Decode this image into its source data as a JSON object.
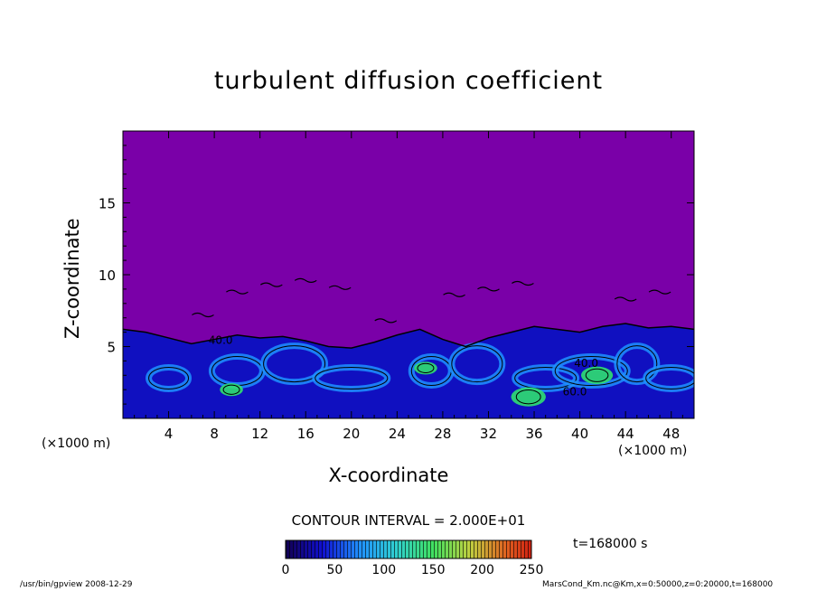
{
  "chart_data": {
    "type": "heatmap",
    "title": "turbulent diffusion coefficient",
    "xlabel": "X-coordinate",
    "ylabel": "Z-coordinate",
    "x_unit": "(×1000 m)",
    "xlim": [
      0,
      50
    ],
    "ylim": [
      0,
      20
    ],
    "x_ticks": [
      4,
      8,
      12,
      16,
      20,
      24,
      28,
      32,
      36,
      40,
      44,
      48
    ],
    "y_ticks": [
      5,
      10,
      15
    ],
    "colorbar": {
      "ticks": [
        0,
        50,
        100,
        150,
        200,
        250
      ],
      "range": [
        0,
        250
      ]
    },
    "contour_interval": "CONTOUR INTERVAL = 2.000E+01",
    "contour_labels": [
      "40.0",
      "40.0",
      "60.0"
    ],
    "boundary_layer_top": [
      [
        0,
        6.2
      ],
      [
        2,
        6.0
      ],
      [
        4,
        5.6
      ],
      [
        6,
        5.2
      ],
      [
        8,
        5.5
      ],
      [
        10,
        5.8
      ],
      [
        12,
        5.6
      ],
      [
        14,
        5.7
      ],
      [
        16,
        5.4
      ],
      [
        18,
        5.0
      ],
      [
        20,
        4.9
      ],
      [
        22,
        5.3
      ],
      [
        24,
        5.8
      ],
      [
        26,
        6.2
      ],
      [
        28,
        5.5
      ],
      [
        30,
        5.0
      ],
      [
        32,
        5.6
      ],
      [
        34,
        6.0
      ],
      [
        36,
        6.4
      ],
      [
        38,
        6.2
      ],
      [
        40,
        6.0
      ],
      [
        42,
        6.4
      ],
      [
        44,
        6.6
      ],
      [
        46,
        6.3
      ],
      [
        48,
        6.4
      ],
      [
        50,
        6.2
      ]
    ],
    "hot_spots": [
      {
        "x": 35.5,
        "z": 1.5,
        "value": 120
      },
      {
        "x": 41.5,
        "z": 3.0,
        "value": 110
      },
      {
        "x": 26.5,
        "z": 3.5,
        "value": 80
      },
      {
        "x": 9.5,
        "z": 2.0,
        "value": 80
      }
    ]
  },
  "colors": {
    "background_field": "#7a00a8",
    "low_value": "#1010c0",
    "mid_value": "#1e90ff",
    "high_value": "#30e070"
  },
  "time_label": "t=168000 s",
  "footer": {
    "left": "/usr/bin/gpview   2008-12-29",
    "right": "MarsCond_Km.nc@Km,x=0:50000,z=0:20000,t=168000"
  }
}
